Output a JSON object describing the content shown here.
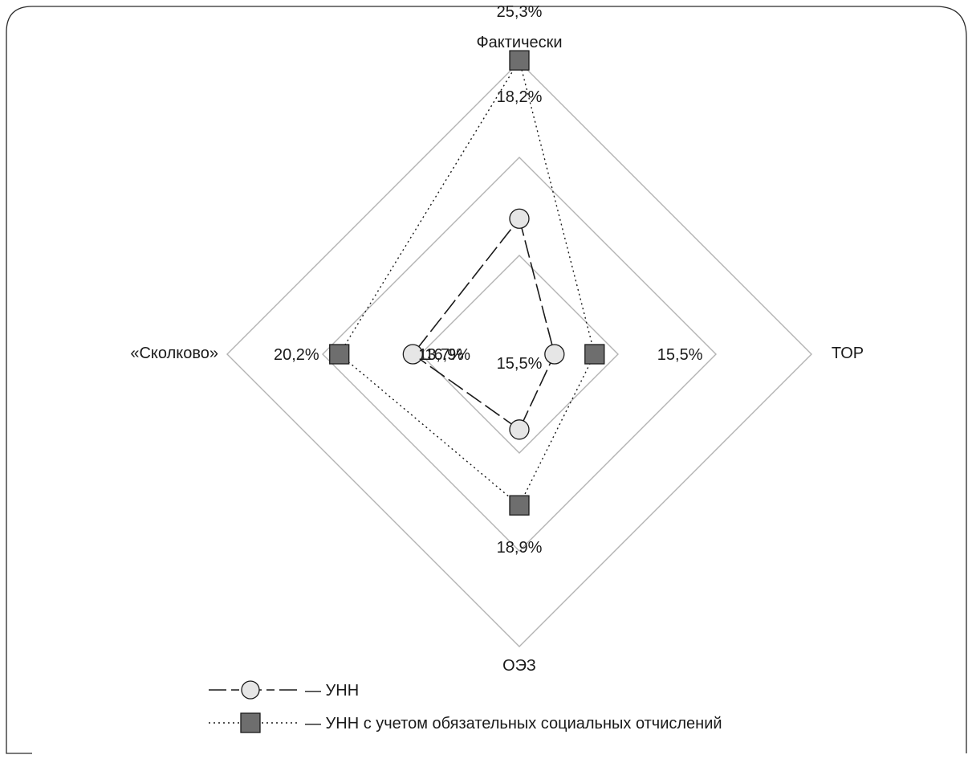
{
  "chart_data": {
    "type": "radar",
    "axes": [
      "Фактически",
      "ТОР",
      "ОЭЗ",
      "«Сколково»"
    ],
    "series": [
      {
        "name": "УНН",
        "marker": "circle",
        "line_style": "dashed",
        "values": [
          18.2,
          13.7,
          15.5,
          16.9
        ],
        "labels": [
          "18,2%",
          "13,7%",
          "15,5%",
          "16,9%"
        ]
      },
      {
        "name": "УНН с учетом обязательных социальных отчислений",
        "marker": "square",
        "line_style": "dotted",
        "values": [
          25.3,
          15.5,
          18.9,
          20.2
        ],
        "labels": [
          "25,3%",
          "15,5%",
          "18,9%",
          "20,2%"
        ]
      }
    ],
    "legend_position": "bottom-left",
    "grid": true
  },
  "legend": {
    "items": [
      {
        "label": "— УНН"
      },
      {
        "label": "— УНН с учетом обязательных социальных отчислений"
      }
    ]
  },
  "colors": {
    "frame": "#2a2a2a",
    "grid": "#b3b3b3",
    "line": "#1a1a1a",
    "circle_fill": "#e6e6e6",
    "square_fill": "#6e6e6e"
  }
}
